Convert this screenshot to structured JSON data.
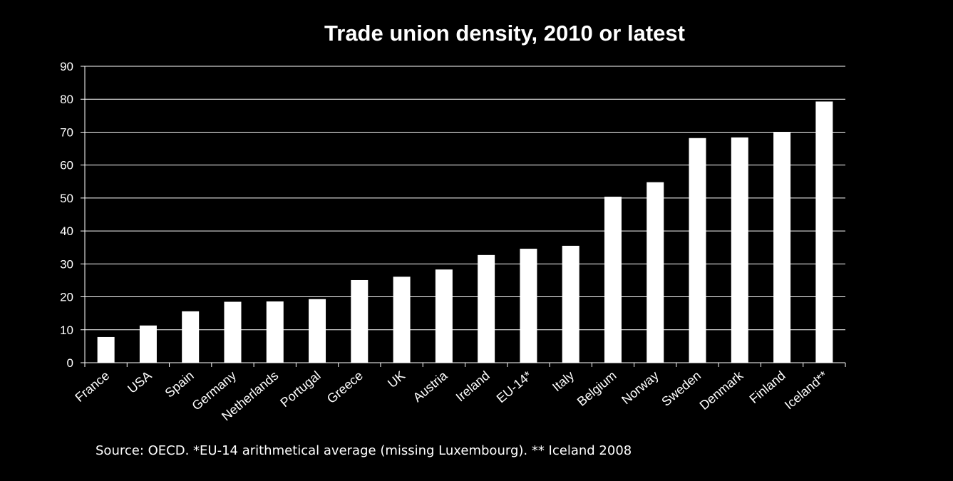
{
  "chart_data": {
    "type": "bar",
    "title": "Trade union density, 2010 or latest",
    "categories": [
      "France",
      "USA",
      "Spain",
      "Germany",
      "Netherlands",
      "Portugal",
      "Greece",
      "UK",
      "Austria",
      "Ireland",
      "EU-14*",
      "Italy",
      "Belgium",
      "Norway",
      "Sweden",
      "Denmark",
      "Finland",
      "Iceland**"
    ],
    "values": [
      7.8,
      11.3,
      15.6,
      18.5,
      18.6,
      19.3,
      25.1,
      26.1,
      28.3,
      32.7,
      34.6,
      35.5,
      50.4,
      54.8,
      68.2,
      68.4,
      70.0,
      79.3
    ],
    "ylim": [
      0,
      90
    ],
    "yticks": [
      0,
      10,
      20,
      30,
      40,
      50,
      60,
      70,
      80,
      90
    ],
    "grid": true,
    "bar_color": "#ffffff",
    "grid_color": "#ffffff",
    "background_color": "#000000"
  },
  "footnote": "Source: OECD. *EU-14 arithmetical average (missing Luxembourg). ** Iceland 2008"
}
